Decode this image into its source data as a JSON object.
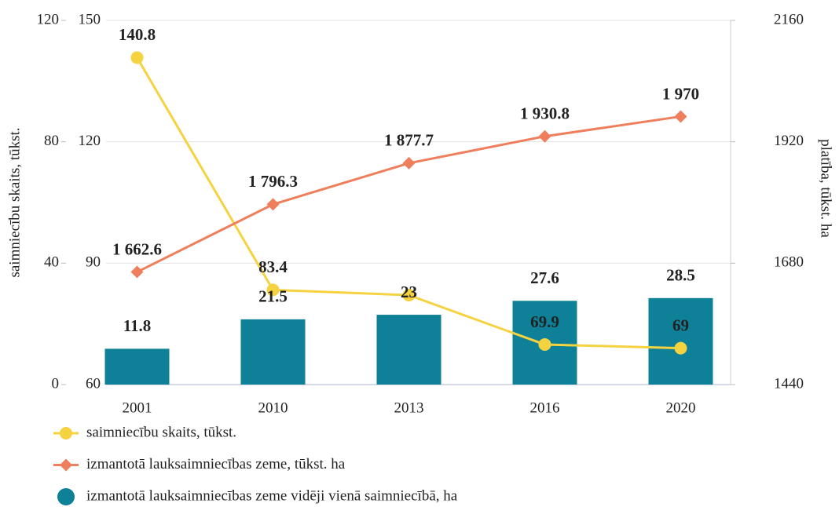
{
  "chart_data": {
    "type": "combo",
    "categories": [
      "2001",
      "2010",
      "2013",
      "2016",
      "2020"
    ],
    "ylabel": "saimniecību skaits, tūkst.",
    "y2label": "platība, tūkst. ha",
    "ylim": [
      60,
      150
    ],
    "yticks": [
      60,
      90,
      120,
      150
    ],
    "y2lim": [
      1440,
      2160
    ],
    "y2ticks": [
      1440,
      1680,
      1920,
      2160
    ],
    "y3lim": [
      0,
      120
    ],
    "y3ticks": [
      0,
      40,
      80,
      120
    ],
    "grid": true,
    "legend": "bottom-left",
    "series": [
      {
        "name": "saimniecību skaits, tūkst.",
        "type": "line",
        "marker": "circle",
        "axis": "y",
        "color": "#f5d340",
        "values": [
          140.8,
          83.4,
          82.1,
          69.9,
          69
        ],
        "value_labels": [
          "140.8",
          "83.4",
          null,
          "69.9",
          "69"
        ]
      },
      {
        "name": "izmantotā lauksaimniecības zeme, tūkst. ha",
        "type": "line",
        "marker": "diamond",
        "axis": "y2",
        "color": "#ef7f5c",
        "values": [
          1662.6,
          1796.3,
          1877.7,
          1930.8,
          1970
        ],
        "value_labels": [
          "1 662.6",
          "1 796.3",
          "1 877.7",
          "1 930.8",
          "1 970"
        ]
      },
      {
        "name": "izmantotā lauksaimniecības zeme vidēji vienā saimniecībā, ha",
        "type": "bar",
        "marker": "circle",
        "axis": "y3",
        "color": "#0e8098",
        "values": [
          11.8,
          21.5,
          23,
          27.6,
          28.5
        ]
      }
    ]
  }
}
